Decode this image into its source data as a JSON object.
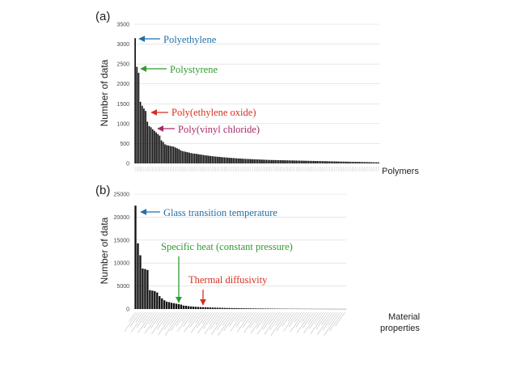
{
  "chart_data": [
    {
      "panel": "(a)",
      "type": "bar",
      "xlabel": "Polymers",
      "ylabel": "Number of data",
      "ylim": [
        0,
        3500
      ],
      "yticks": [
        0,
        500,
        1000,
        1500,
        2000,
        2500,
        3000,
        3500
      ],
      "grid": true,
      "values": [
        3150,
        2430,
        2280,
        1550,
        1450,
        1380,
        1320,
        1050,
        940,
        910,
        860,
        820,
        780,
        740,
        700,
        580,
        540,
        480,
        460,
        450,
        440,
        430,
        420,
        400,
        380,
        360,
        330,
        310,
        300,
        290,
        280,
        270,
        260,
        250,
        245,
        240,
        232,
        225,
        218,
        212,
        205,
        198,
        192,
        187,
        182,
        177,
        172,
        168,
        164,
        160,
        156,
        152,
        148,
        144,
        140,
        137,
        134,
        131,
        128,
        125,
        122,
        119,
        116,
        114,
        112,
        110,
        108,
        106,
        104,
        102,
        100,
        98,
        96,
        94,
        92,
        90,
        88,
        87,
        86,
        85,
        84,
        83,
        82,
        81,
        80,
        79,
        78,
        77,
        76,
        75,
        74,
        73,
        72,
        71,
        70,
        69,
        68,
        67,
        66,
        65,
        64,
        63,
        62,
        61,
        60,
        59,
        58,
        57,
        56,
        55,
        54,
        53,
        52,
        51,
        50,
        49,
        48,
        47,
        46,
        45,
        44,
        43,
        42,
        41,
        40,
        40,
        39,
        38,
        37,
        36,
        35,
        34,
        33,
        32,
        31,
        30,
        29,
        28,
        27,
        26
      ],
      "annotations": [
        {
          "text": "Polyethylene",
          "color": "#1f6fa8",
          "bar_index": 0
        },
        {
          "text": "Polystyrene",
          "color": "#2f9a2f",
          "bar_index": 1
        },
        {
          "text": "Poly(ethylene oxide)",
          "color": "#d62f1f",
          "bar_index": 6
        },
        {
          "text": "Poly(vinyl chloride)",
          "color": "#a8286a",
          "bar_index": 9
        }
      ]
    },
    {
      "panel": "(b)",
      "type": "bar",
      "xlabel": "Material properties",
      "xlabel_lines": [
        "Material",
        "properties"
      ],
      "ylabel": "Number of data",
      "ylim": [
        0,
        25000
      ],
      "yticks": [
        0,
        5000,
        10000,
        15000,
        20000,
        25000
      ],
      "grid": true,
      "values": [
        22500,
        14300,
        11700,
        8800,
        8700,
        8500,
        4100,
        4000,
        3900,
        3600,
        2800,
        2300,
        1900,
        1600,
        1500,
        1350,
        1250,
        1150,
        1050,
        950,
        750,
        700,
        620,
        560,
        520,
        480,
        450,
        420,
        400,
        380,
        360,
        340,
        320,
        300,
        285,
        270,
        255,
        240,
        228,
        216,
        205,
        195,
        185,
        176,
        168,
        160,
        152,
        145,
        138,
        131,
        125,
        119,
        113,
        107,
        101,
        96,
        91,
        86,
        81,
        77,
        73,
        69,
        65,
        61,
        58,
        55,
        52,
        49,
        46,
        43,
        41,
        39,
        37,
        35,
        33,
        31,
        29,
        27,
        25,
        23,
        22,
        21,
        20,
        19,
        18,
        17,
        16,
        15
      ],
      "annotations": [
        {
          "text": "Glass transition temperature",
          "color": "#1f6fa8",
          "bar_index": 0
        },
        {
          "text": "Specific heat (constant pressure)",
          "color": "#2f9a2f",
          "bar_index": 13
        },
        {
          "text": "Thermal diffusivity",
          "color": "#d62f1f",
          "bar_index": 20
        }
      ]
    }
  ]
}
